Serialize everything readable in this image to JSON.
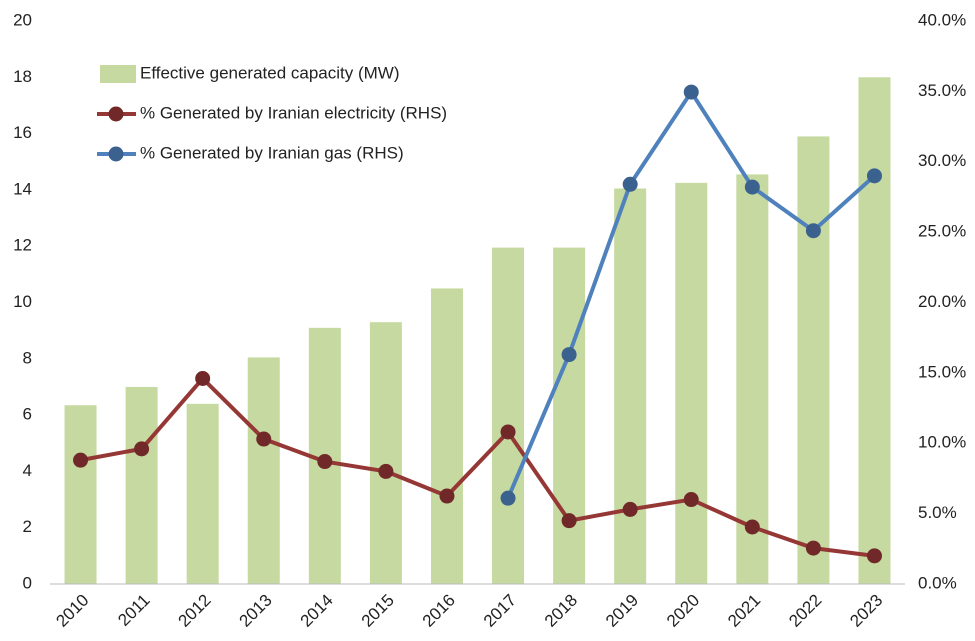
{
  "chart_data": {
    "type": "bar",
    "categories": [
      "2010",
      "2011",
      "2012",
      "2013",
      "2014",
      "2015",
      "2016",
      "2017",
      "2018",
      "2019",
      "2020",
      "2021",
      "2022",
      "2023"
    ],
    "series": [
      {
        "name": "Effective generated capacity (MW)",
        "type": "bar",
        "color": "#c5d9a0",
        "values": [
          6.35,
          7.0,
          6.4,
          8.05,
          9.1,
          9.3,
          10.5,
          11.95,
          11.95,
          14.05,
          14.25,
          14.55,
          15.9,
          18.0
        ]
      },
      {
        "name": "% Generated by Iranian electricity (RHS)",
        "type": "line",
        "axis": "y2",
        "color": "#953735",
        "values": [
          8.8,
          9.6,
          14.6,
          10.3,
          8.7,
          8.0,
          6.25,
          10.8,
          4.5,
          5.3,
          6.0,
          4.05,
          2.55,
          2.0
        ]
      },
      {
        "name": "% Generated by Iranian gas  (RHS)",
        "type": "line",
        "axis": "y2",
        "color": "#4f81bd",
        "values": [
          null,
          null,
          null,
          null,
          null,
          null,
          null,
          6.1,
          16.3,
          28.4,
          34.95,
          28.2,
          25.1,
          29.0
        ]
      }
    ],
    "ylim": [
      0,
      20
    ],
    "yticks": [
      0,
      2,
      4,
      6,
      8,
      10,
      12,
      14,
      16,
      18,
      20
    ],
    "y2lim": [
      0,
      40
    ],
    "y2ticks": [
      {
        "value": 0,
        "label": "0.0%"
      },
      {
        "value": 5,
        "label": "5.0%"
      },
      {
        "value": 10,
        "label": "10.0%"
      },
      {
        "value": 15,
        "label": "15.0%"
      },
      {
        "value": 20,
        "label": "20.0%"
      },
      {
        "value": 25,
        "label": "25.0%"
      },
      {
        "value": 30,
        "label": "30.0%"
      },
      {
        "value": 35,
        "label": "35.0%"
      },
      {
        "value": 40,
        "label": "40.0%"
      }
    ],
    "legend": "top-left",
    "grid": false
  }
}
